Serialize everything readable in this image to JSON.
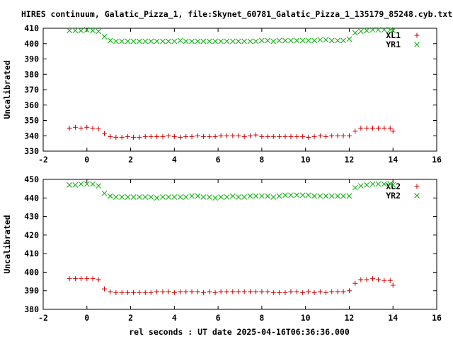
{
  "title": "HIRES continuum, Galatic_Pizza_1, file:Skynet_60781_Galatic_Pizza_1_135179_85248.cyb.txt",
  "colors": {
    "red": "#cc0000",
    "green": "#00b000"
  },
  "chart_data": [
    {
      "type": "scatter",
      "ylabel": "Uncalibrated",
      "xlabel": "",
      "xlim": [
        -2,
        16
      ],
      "ylim": [
        330,
        410
      ],
      "xticks": [
        "-2",
        "0",
        "2",
        "4",
        "6",
        "8",
        "10",
        "12",
        "14",
        "16"
      ],
      "yticks": [
        "330",
        "340",
        "350",
        "360",
        "370",
        "380",
        "390",
        "400",
        "410"
      ],
      "legend_position": "top-right",
      "x": [
        -0.8,
        -0.53,
        -0.27,
        0.0,
        0.27,
        0.53,
        0.8,
        1.07,
        1.33,
        1.6,
        1.87,
        2.13,
        2.4,
        2.67,
        2.93,
        3.2,
        3.47,
        3.73,
        4.0,
        4.27,
        4.53,
        4.8,
        5.07,
        5.33,
        5.6,
        5.87,
        6.13,
        6.4,
        6.67,
        6.93,
        7.2,
        7.47,
        7.73,
        8.0,
        8.27,
        8.53,
        8.8,
        9.07,
        9.33,
        9.6,
        9.87,
        10.13,
        10.4,
        10.67,
        10.93,
        11.2,
        11.47,
        11.73,
        12.0,
        12.27,
        12.53,
        12.8,
        13.07,
        13.33,
        13.6,
        13.87,
        14.0
      ],
      "series": [
        {
          "name": "XL1",
          "marker": "plus",
          "color": "#cc0000",
          "values": [
            345,
            345.5,
            345,
            345.5,
            345,
            344.5,
            341.5,
            339.5,
            339,
            339,
            339.5,
            339,
            339,
            339.5,
            339.5,
            339.5,
            339.5,
            340,
            339.5,
            339,
            339.5,
            339.5,
            340,
            339.5,
            339.5,
            339.5,
            340,
            340,
            340,
            340,
            339.5,
            340,
            340.5,
            339.5,
            339.5,
            339.5,
            339.5,
            339.5,
            339.5,
            339.5,
            339.5,
            339,
            339.5,
            340,
            339.5,
            340,
            340,
            340,
            340,
            343,
            345,
            345,
            345,
            345,
            345,
            345,
            343
          ]
        },
        {
          "name": "YR1",
          "marker": "cross",
          "color": "#00b000",
          "values": [
            408.5,
            408.5,
            408.5,
            409,
            408.5,
            408,
            404.5,
            402,
            401.5,
            401.5,
            401.5,
            401.5,
            401.5,
            401.5,
            401.5,
            401.5,
            401.5,
            401.5,
            401.5,
            402,
            401.5,
            401.5,
            401.5,
            401.5,
            401.5,
            401.5,
            401.5,
            401.5,
            401.5,
            401.5,
            401.5,
            401.5,
            401.5,
            402,
            402,
            401.5,
            402,
            402,
            402,
            402,
            402,
            402,
            402,
            402.5,
            402.5,
            402,
            402,
            402,
            403,
            407,
            408,
            408.5,
            409,
            409,
            409,
            409,
            408.5
          ]
        }
      ]
    },
    {
      "type": "scatter",
      "ylabel": "Uncalibrated",
      "xlabel": "rel seconds : UT date 2025-04-16T06:36:36.000",
      "xlim": [
        -2,
        16
      ],
      "ylim": [
        380,
        450
      ],
      "xticks": [
        "-2",
        "0",
        "2",
        "4",
        "6",
        "8",
        "10",
        "12",
        "14",
        "16"
      ],
      "yticks": [
        "380",
        "390",
        "400",
        "410",
        "420",
        "430",
        "440",
        "450"
      ],
      "legend_position": "top-right",
      "x": [
        -0.8,
        -0.53,
        -0.27,
        0.0,
        0.27,
        0.53,
        0.8,
        1.07,
        1.33,
        1.6,
        1.87,
        2.13,
        2.4,
        2.67,
        2.93,
        3.2,
        3.47,
        3.73,
        4.0,
        4.27,
        4.53,
        4.8,
        5.07,
        5.33,
        5.6,
        5.87,
        6.13,
        6.4,
        6.67,
        6.93,
        7.2,
        7.47,
        7.73,
        8.0,
        8.27,
        8.53,
        8.8,
        9.07,
        9.33,
        9.6,
        9.87,
        10.13,
        10.4,
        10.67,
        10.93,
        11.2,
        11.47,
        11.73,
        12.0,
        12.27,
        12.53,
        12.8,
        13.07,
        13.33,
        13.6,
        13.87,
        14.0
      ],
      "series": [
        {
          "name": "XL2",
          "marker": "plus",
          "color": "#cc0000",
          "values": [
            396.5,
            396.5,
            396.5,
            396.5,
            396.5,
            396,
            391,
            389.5,
            389,
            389,
            389,
            389,
            389,
            389,
            389,
            389.5,
            389.5,
            389.5,
            389,
            389.5,
            389.5,
            389.5,
            389.5,
            389,
            389.5,
            389,
            389.5,
            389.5,
            389.5,
            389.5,
            389.5,
            389.5,
            389.5,
            389.5,
            389.5,
            389,
            389,
            389,
            389.5,
            389.5,
            389,
            389.5,
            389,
            389.5,
            389,
            389.5,
            389.5,
            389.5,
            390,
            394,
            396,
            396,
            396.5,
            396,
            395.5,
            395.5,
            393
          ]
        },
        {
          "name": "YR2",
          "marker": "cross",
          "color": "#00b000",
          "values": [
            447,
            447,
            447.5,
            447.5,
            447.5,
            446.5,
            442.5,
            441,
            440.5,
            440.5,
            440.5,
            440.5,
            440.5,
            440.5,
            440.5,
            440,
            440.5,
            440.5,
            440.5,
            440.5,
            440.5,
            441,
            441,
            440.5,
            440.5,
            440,
            440.5,
            440.5,
            441,
            440.5,
            440.5,
            441,
            441,
            441,
            441,
            440.5,
            441,
            441.5,
            441.5,
            441.5,
            441.5,
            441.5,
            441,
            441,
            441,
            441,
            441,
            441,
            441,
            445.5,
            446.5,
            447,
            447.5,
            447.5,
            447.5,
            447.5,
            447
          ]
        }
      ]
    }
  ]
}
